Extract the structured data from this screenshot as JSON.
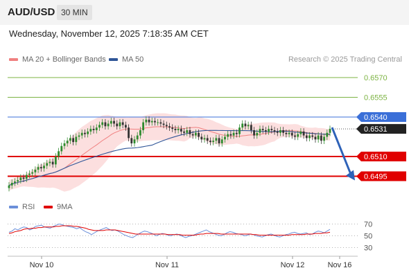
{
  "header": {
    "symbol": "AUD/USD",
    "timeframe": "30 MIN"
  },
  "datetime": "Wednesday, November 12, 2025 7:18:35 AM CET",
  "legend": {
    "ma20_label": "MA 20 + Bollinger Bands",
    "ma50_label": "MA 50",
    "credit": "Research © 2025 Trading Central"
  },
  "rsi_legend": {
    "rsi_label": "RSI",
    "ma9_label": "9MA"
  },
  "colors": {
    "ma20": "#f08080",
    "ma50": "#2f5597",
    "bands": "#fbd4d4",
    "green_level": "#7cb342",
    "blue_level": "#3a6fd8",
    "red_level": "#e00000",
    "rsi": "#6b8fd9",
    "rsi_ma": "#e00000",
    "up": "#2e8b2e",
    "down": "#333333"
  },
  "chart_data": {
    "type": "candlestick",
    "price_axis": {
      "min": 0.648,
      "max": 0.658
    },
    "x_ticks": [
      "Nov 10",
      "Nov 11",
      "Nov 12",
      "Nov 16"
    ],
    "levels": [
      {
        "value": "0.6570",
        "kind": "green"
      },
      {
        "value": "0.6555",
        "kind": "green"
      },
      {
        "value": "0.6540",
        "kind": "blue"
      },
      {
        "value": "0.6531",
        "kind": "last"
      },
      {
        "value": "0.6510",
        "kind": "red"
      },
      {
        "value": "0.6495",
        "kind": "red"
      }
    ],
    "closes": [
      0.6488,
      0.649,
      0.6491,
      0.6492,
      0.6494,
      0.6493,
      0.6496,
      0.6497,
      0.6498,
      0.65,
      0.6502,
      0.6501,
      0.6503,
      0.6505,
      0.6506,
      0.6504,
      0.651,
      0.6514,
      0.6518,
      0.652,
      0.6522,
      0.6524,
      0.6521,
      0.6525,
      0.6526,
      0.6528,
      0.6527,
      0.6529,
      0.6531,
      0.653,
      0.6532,
      0.6534,
      0.6536,
      0.6533,
      0.6535,
      0.6537,
      0.6535,
      0.6533,
      0.6536,
      0.6534,
      0.6532,
      0.6524,
      0.652,
      0.6523,
      0.6526,
      0.653,
      0.6536,
      0.6538,
      0.6536,
      0.6537,
      0.6536,
      0.6536,
      0.6535,
      0.6534,
      0.6533,
      0.6532,
      0.6531,
      0.653,
      0.6531,
      0.6529,
      0.6528,
      0.653,
      0.6527,
      0.6526,
      0.6528,
      0.6525,
      0.6523,
      0.6524,
      0.6522,
      0.6521,
      0.6522,
      0.6524,
      0.652,
      0.6523,
      0.6525,
      0.6527,
      0.6526,
      0.6528,
      0.6527,
      0.6532,
      0.6535,
      0.6533,
      0.6534,
      0.653,
      0.6526,
      0.6528,
      0.6531,
      0.653,
      0.6529,
      0.6531,
      0.653,
      0.6529,
      0.6528,
      0.653,
      0.6528,
      0.6527,
      0.6528,
      0.6526,
      0.6525,
      0.6527,
      0.6529,
      0.6526,
      0.6524,
      0.6526,
      0.6525,
      0.6523,
      0.6526,
      0.6522,
      0.6525,
      0.6528,
      0.6531
    ],
    "forecast": {
      "from": 0.6531,
      "to": 0.6495
    },
    "rsi_axis": {
      "ticks": [
        "70",
        "50",
        "30"
      ]
    },
    "rsi": [
      56,
      58,
      62,
      60,
      63,
      65,
      64,
      60,
      62,
      66,
      67,
      68,
      65,
      64,
      63,
      66,
      68,
      70,
      69,
      67,
      66,
      65,
      64,
      62,
      64,
      60,
      57,
      55,
      52,
      55,
      58,
      60,
      62,
      64,
      61,
      59,
      60,
      58,
      55,
      52,
      50,
      48,
      47,
      50,
      53,
      56,
      58,
      57,
      55,
      53,
      50,
      52,
      54,
      53,
      51,
      50,
      52,
      53,
      51,
      49,
      47,
      49,
      50,
      52,
      54,
      56,
      58,
      60,
      57,
      55,
      53,
      51,
      50,
      52,
      55,
      57,
      56,
      54,
      53,
      52,
      50,
      51,
      53,
      52,
      50,
      49,
      48,
      50,
      52,
      53,
      51,
      49,
      48,
      50,
      52,
      53,
      55,
      56,
      54,
      53,
      54,
      55,
      52,
      53,
      56,
      58,
      57,
      55,
      58,
      61
    ],
    "rsi_ma": [
      54,
      55,
      57,
      58,
      59,
      61,
      62,
      62,
      63,
      63,
      64,
      64,
      65,
      65,
      65,
      65,
      66,
      66,
      67,
      67,
      67,
      67,
      66,
      66,
      65,
      64,
      63,
      61,
      60,
      59,
      59,
      59,
      59,
      60,
      60,
      60,
      60,
      59,
      58,
      57,
      56,
      55,
      54,
      53,
      53,
      53,
      53,
      53,
      53,
      53,
      53,
      53,
      53,
      53,
      52,
      52,
      52,
      52,
      52,
      51,
      51,
      51,
      51,
      51,
      52,
      53,
      53,
      54,
      54,
      54,
      54,
      54,
      53,
      53,
      53,
      53,
      53,
      53,
      53,
      53,
      53,
      53,
      53,
      52,
      52,
      51,
      51,
      51,
      51,
      51,
      51,
      51,
      51,
      51,
      51,
      51,
      52,
      52,
      52,
      52,
      52,
      53,
      53,
      53,
      54,
      54,
      54,
      55,
      55,
      56
    ]
  }
}
